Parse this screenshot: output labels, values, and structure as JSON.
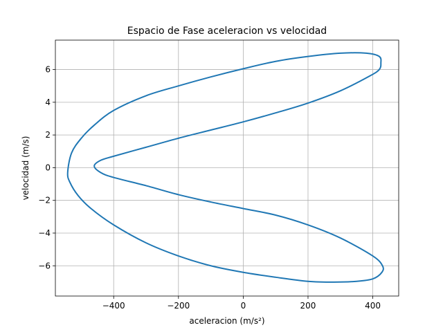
{
  "chart_data": {
    "type": "line",
    "title": "Espacio de Fase aceleracion vs velocidad",
    "xlabel": "aceleracion (m/s²)",
    "ylabel": "velocidad (m/s)",
    "xlim": [
      -580,
      480
    ],
    "ylim": [
      -7.85,
      7.8
    ],
    "xticks": [
      -400,
      -200,
      0,
      200,
      400
    ],
    "yticks": [
      -6,
      -4,
      -2,
      0,
      2,
      4,
      6
    ],
    "xtick_labels": [
      "−400",
      "−200",
      "0",
      "200",
      "400"
    ],
    "ytick_labels": [
      "−6",
      "−4",
      "−2",
      "0",
      "2",
      "4",
      "6"
    ],
    "grid": true,
    "series": [
      {
        "color": "#1f77b4",
        "x": [
          -542,
          -530,
          -500,
          -460,
          -400,
          -300,
          -200,
          -100,
          0,
          100,
          200,
          300,
          380,
          420,
          425,
          420,
          390,
          300,
          200,
          100,
          0,
          -100,
          -200,
          -300,
          -400,
          -440,
          -460,
          -440,
          -400,
          -300,
          -200,
          -100,
          0,
          100,
          200,
          300,
          400,
          430,
          428,
          400,
          350,
          280,
          200,
          100,
          0,
          -100,
          -200,
          -300,
          -400,
          -470,
          -510,
          -535,
          -542
        ],
        "y": [
          -0.3,
          0.9,
          1.8,
          2.6,
          3.5,
          4.4,
          5.0,
          5.55,
          6.05,
          6.5,
          6.8,
          7.0,
          7.0,
          6.8,
          6.4,
          6.0,
          5.6,
          4.7,
          3.95,
          3.35,
          2.8,
          2.3,
          1.8,
          1.25,
          0.7,
          0.45,
          0.1,
          -0.3,
          -0.6,
          -1.1,
          -1.65,
          -2.1,
          -2.5,
          -2.9,
          -3.5,
          -4.3,
          -5.4,
          -6.0,
          -6.4,
          -6.8,
          -6.95,
          -7.0,
          -6.95,
          -6.7,
          -6.4,
          -6.0,
          -5.4,
          -4.6,
          -3.5,
          -2.5,
          -1.7,
          -0.9,
          -0.3
        ]
      }
    ]
  }
}
